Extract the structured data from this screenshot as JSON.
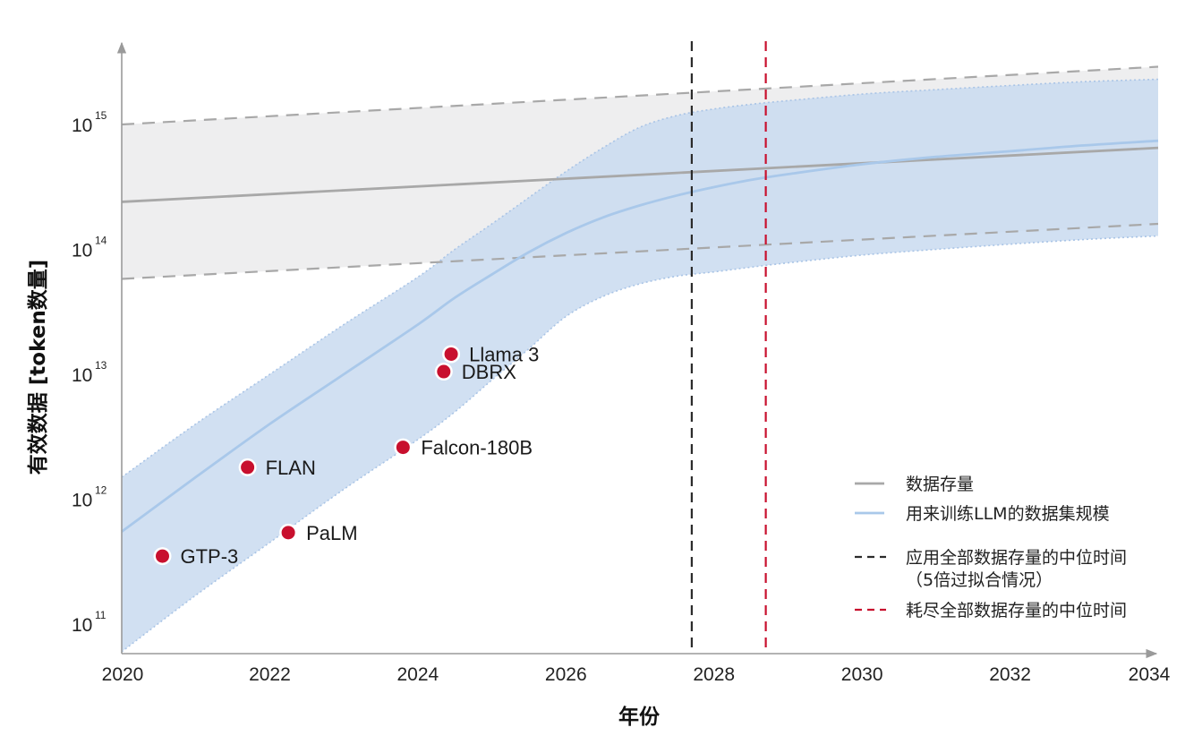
{
  "chart_data": {
    "type": "line",
    "title": "",
    "xlabel": "年份",
    "ylabel": "有效数据 [token数量]",
    "xlim": [
      2020,
      2034
    ],
    "ylim": [
      50000000000.0,
      5000000000000000.0
    ],
    "yscale": "log",
    "grid": false,
    "legend_position": "bottom-right",
    "x_ticks": [
      {
        "value": 2020,
        "label": "2020"
      },
      {
        "value": 2022,
        "label": "2022"
      },
      {
        "value": 2024,
        "label": "2024"
      },
      {
        "value": 2026,
        "label": "2026"
      },
      {
        "value": 2028,
        "label": "2028"
      },
      {
        "value": 2030,
        "label": "2030"
      },
      {
        "value": 2032,
        "label": "2032"
      },
      {
        "value": 2034,
        "label": "2034"
      }
    ],
    "y_ticks": [
      {
        "value": 100000000000.0,
        "base": "10",
        "exp": "11"
      },
      {
        "value": 1000000000000.0,
        "base": "10",
        "exp": "12"
      },
      {
        "value": 10000000000000.0,
        "base": "10",
        "exp": "13"
      },
      {
        "value": 100000000000000.0,
        "base": "10",
        "exp": "14"
      },
      {
        "value": 1000000000000000.0,
        "base": "10",
        "exp": "15"
      }
    ],
    "stock": {
      "name": "数据存量",
      "color": "#a8a8a8",
      "x": [
        2020,
        2034
      ],
      "median": [
        240000000000000.0,
        650000000000000.0
      ],
      "upper": [
        1000000000000000.0,
        2900000000000000.0
      ],
      "lower": [
        58000000000000.0,
        160000000000000.0
      ]
    },
    "training": {
      "name": "用来训练LLM的数据集规模",
      "color": "#a9c8ea",
      "band_color": "#c9dbf0",
      "x": [
        2020,
        2021,
        2022,
        2023,
        2024,
        2024.5,
        2025,
        2025.5,
        2026,
        2026.5,
        2027,
        2027.5,
        2028,
        2028.5,
        2029,
        2030,
        2031,
        2032,
        2033,
        2034
      ],
      "median": [
        550000000000.0,
        1500000000000.0,
        4000000000000.0,
        10000000000000.0,
        25000000000000.0,
        41000000000000.0,
        63000000000000.0,
        95000000000000.0,
        135000000000000.0,
        180000000000000.0,
        225000000000000.0,
        270000000000000.0,
        315000000000000.0,
        360000000000000.0,
        400000000000000.0,
        480000000000000.0,
        550000000000000.0,
        610000000000000.0,
        680000000000000.0,
        740000000000000.0
      ],
      "upper": [
        1500000000000.0,
        4000000000000.0,
        10000000000000.0,
        25000000000000.0,
        60000000000000.0,
        100000000000000.0,
        160000000000000.0,
        260000000000000.0,
        420000000000000.0,
        650000000000000.0,
        950000000000000.0,
        1180000000000000.0,
        1330000000000000.0,
        1450000000000000.0,
        1550000000000000.0,
        1750000000000000.0,
        1900000000000000.0,
        2050000000000000.0,
        2200000000000000.0,
        2300000000000000.0
      ],
      "lower": [
        60000000000.0,
        170000000000.0,
        450000000000.0,
        1200000000000.0,
        3000000000000.0,
        5000000000000.0,
        9000000000000.0,
        16000000000000.0,
        29000000000000.0,
        42000000000000.0,
        53000000000000.0,
        61000000000000.0,
        66000000000000.0,
        72000000000000.0,
        78000000000000.0,
        90000000000000.0,
        100000000000000.0,
        110000000000000.0,
        120000000000000.0,
        128000000000000.0
      ]
    },
    "vlines": [
      {
        "name": "应用全部数据存量的中位时间",
        "name2": "（5倍过拟合情况）",
        "x": 2027.7,
        "color": "#2b2b2b"
      },
      {
        "name": "耗尽全部数据存量的中位时间",
        "x": 2028.7,
        "color": "#c8102e"
      }
    ],
    "points": [
      {
        "label": "GTP-3",
        "x": 2020.55,
        "y": 350000000000.0
      },
      {
        "label": "FLAN",
        "x": 2021.7,
        "y": 1800000000000.0
      },
      {
        "label": "PaLM",
        "x": 2022.25,
        "y": 540000000000.0
      },
      {
        "label": "Falcon-180B",
        "x": 2023.8,
        "y": 2600000000000.0
      },
      {
        "label": "Llama 3",
        "x": 2024.45,
        "y": 14500000000000.0
      },
      {
        "label": "DBRX",
        "x": 2024.35,
        "y": 10500000000000.0
      }
    ],
    "point_color": "#c8102e"
  }
}
